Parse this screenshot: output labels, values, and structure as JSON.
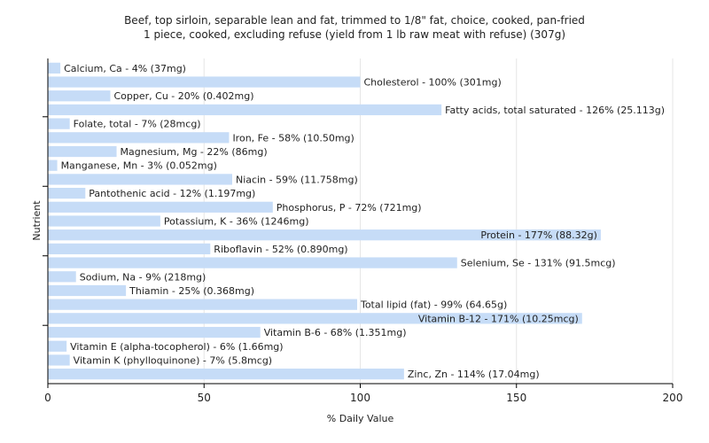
{
  "chart_data": {
    "type": "bar",
    "orientation": "horizontal",
    "title": "Beef, top sirloin, separable lean and fat, trimmed to 1/8\" fat, choice, cooked, pan-fried",
    "subtitle": "1 piece, cooked, excluding refuse (yield from 1 lb raw meat with refuse) (307g)",
    "xlabel": "% Daily Value",
    "ylabel": "Nutrient",
    "xlim": [
      0,
      200
    ],
    "xticks": [
      0,
      50,
      100,
      150,
      200
    ],
    "bar_color": "#c6dcf7",
    "grid": "vertical",
    "categories": [
      "Calcium, Ca",
      "Cholesterol",
      "Copper, Cu",
      "Fatty acids, total saturated",
      "Folate, total",
      "Iron, Fe",
      "Magnesium, Mg",
      "Manganese, Mn",
      "Niacin",
      "Pantothenic acid",
      "Phosphorus, P",
      "Potassium, K",
      "Protein",
      "Riboflavin",
      "Selenium, Se",
      "Sodium, Na",
      "Thiamin",
      "Total lipid (fat)",
      "Vitamin B-12",
      "Vitamin B-6",
      "Vitamin E (alpha-tocopherol)",
      "Vitamin K (phylloquinone)",
      "Zinc, Zn"
    ],
    "values": [
      4,
      100,
      20,
      126,
      7,
      58,
      22,
      3,
      59,
      12,
      72,
      36,
      177,
      52,
      131,
      9,
      25,
      99,
      171,
      68,
      6,
      7,
      114
    ],
    "labels": [
      "Calcium, Ca - 4% (37mg)",
      "Cholesterol - 100% (301mg)",
      "Copper, Cu - 20% (0.402mg)",
      "Fatty acids, total saturated - 126% (25.113g)",
      "Folate, total - 7% (28mcg)",
      "Iron, Fe - 58% (10.50mg)",
      "Magnesium, Mg - 22% (86mg)",
      "Manganese, Mn - 3% (0.052mg)",
      "Niacin - 59% (11.758mg)",
      "Pantothenic acid - 12% (1.197mg)",
      "Phosphorus, P - 72% (721mg)",
      "Potassium, K - 36% (1246mg)",
      "Protein - 177% (88.32g)",
      "Riboflavin - 52% (0.890mg)",
      "Selenium, Se - 131% (91.5mcg)",
      "Sodium, Na - 9% (218mg)",
      "Thiamin - 25% (0.368mg)",
      "Total lipid (fat) - 99% (64.65g)",
      "Vitamin B-12 - 171% (10.25mcg)",
      "Vitamin B-6 - 68% (1.351mg)",
      "Vitamin E (alpha-tocopherol) - 6% (1.66mg)",
      "Vitamin K (phylloquinone) - 7% (5.8mcg)",
      "Zinc, Zn - 114% (17.04mg)"
    ]
  }
}
